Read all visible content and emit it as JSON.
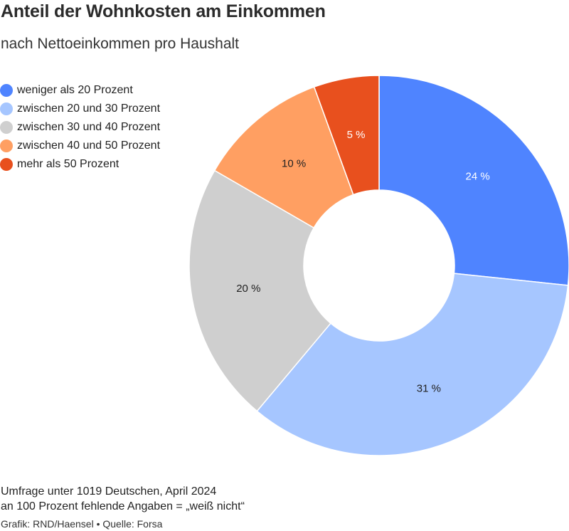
{
  "header": {
    "title": "Anteil der Wohnkosten am Einkommen",
    "subtitle": "nach Nettoeinkommen pro Haushalt"
  },
  "chart_data": {
    "type": "pie",
    "donut": true,
    "categories": [
      "weniger als 20 Prozent",
      "zwischen 20 und 30 Prozent",
      "zwischen 30 und 40 Prozent",
      "zwischen 40 und 50 Prozent",
      "mehr als 50 Prozent"
    ],
    "values": [
      24,
      31,
      20,
      10,
      5
    ],
    "labels": [
      "24 %",
      "31 %",
      "20 %",
      "10 %",
      "5 %"
    ],
    "colors": [
      "#4f84ff",
      "#a6c6ff",
      "#cfcfcf",
      "#ff9f62",
      "#e8501e"
    ],
    "label_colors": [
      "#ffffff",
      "#222222",
      "#222222",
      "#222222",
      "#ffffff"
    ],
    "legend_position": "top-left"
  },
  "footer": {
    "lines": [
      "Umfrage unter 1019 Deutschen, April 2024",
      "an 100 Prozent fehlende Angaben = „weiß nicht“"
    ],
    "credit": "Grafik: RND/Haensel • Quelle: Forsa"
  }
}
